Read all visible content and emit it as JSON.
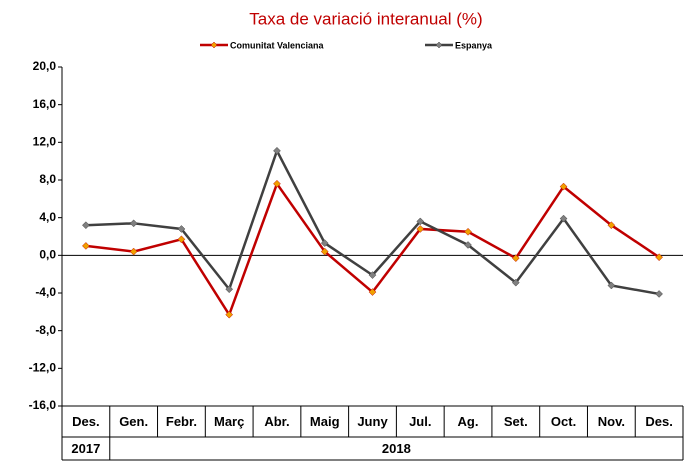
{
  "chart_data": {
    "type": "line",
    "subtitle": "Taxa de variació interanual (%)",
    "categories": [
      "Des.",
      "Gen.",
      "Febr.",
      "Març",
      "Abr.",
      "Maig",
      "Juny",
      "Jul.",
      "Ag.",
      "Set.",
      "Oct.",
      "Nov.",
      "Des."
    ],
    "year_groups": [
      {
        "label": "2017",
        "span": 1
      },
      {
        "label": "2018",
        "span": 12
      }
    ],
    "series": [
      {
        "name": "Comunitat Valenciana",
        "color": "#c00000",
        "marker_color": "#f0a000",
        "values": [
          1.0,
          0.4,
          1.7,
          -6.3,
          7.6,
          0.4,
          -3.9,
          2.8,
          2.5,
          -0.3,
          7.3,
          3.2,
          -0.2
        ]
      },
      {
        "name": "Espanya",
        "color": "#404040",
        "marker_color": "#808080",
        "values": [
          3.2,
          3.4,
          2.8,
          -3.6,
          11.1,
          1.3,
          -2.1,
          3.6,
          1.1,
          -2.9,
          3.9,
          -3.2,
          -4.1
        ]
      }
    ],
    "ylim": [
      -16,
      20
    ],
    "yticks": [
      {
        "value": 20,
        "label": "20,0"
      },
      {
        "value": 16,
        "label": "16,0"
      },
      {
        "value": 12,
        "label": "12,0"
      },
      {
        "value": 8,
        "label": "8,0"
      },
      {
        "value": 4,
        "label": "4,0"
      },
      {
        "value": 0,
        "label": "0,0"
      },
      {
        "value": -4,
        "label": "-4,0"
      },
      {
        "value": -8,
        "label": "-8,0"
      },
      {
        "value": -12,
        "label": "-12,0"
      },
      {
        "value": -16,
        "label": "-16,0"
      }
    ]
  }
}
